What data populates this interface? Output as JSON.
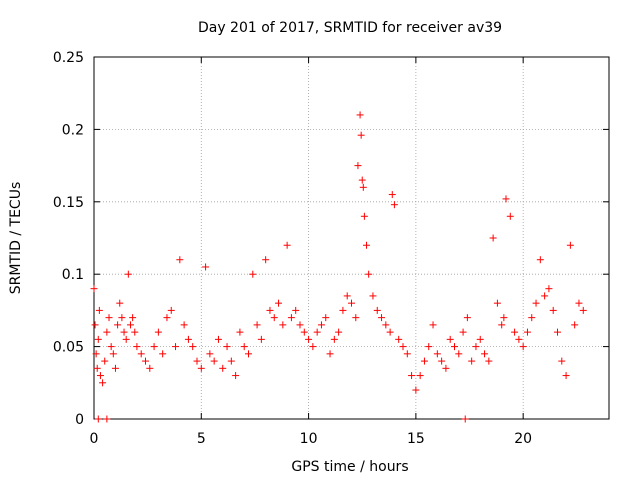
{
  "chart_data": {
    "type": "scatter",
    "title": "Day 201 of 2017, SRMTID for receiver av39",
    "xlabel": "GPS time / hours",
    "ylabel": "SRMTID / TECUs",
    "xlim": [
      0,
      24
    ],
    "ylim": [
      0,
      0.25
    ],
    "xticks": [
      0,
      5,
      10,
      15,
      20
    ],
    "xtick_labels": [
      "0",
      "5",
      "10",
      "15",
      "20"
    ],
    "yticks": [
      0,
      0.05,
      0.1,
      0.15,
      0.2,
      0.25
    ],
    "ytick_labels": [
      "0",
      "0.05",
      "0.1",
      "0.15",
      "0.2",
      "0.25"
    ],
    "grid": true,
    "legend": "none",
    "marker": "+",
    "series": [
      {
        "name": "SRMTID",
        "color": "#ff0000",
        "x": [
          0.0,
          0.05,
          0.1,
          0.15,
          0.2,
          0.25,
          0.3,
          0.4,
          0.5,
          0.6,
          0.7,
          0.8,
          0.9,
          1.0,
          1.1,
          1.2,
          1.3,
          1.4,
          1.5,
          1.6,
          1.7,
          1.8,
          1.9,
          2.0,
          2.2,
          2.4,
          2.6,
          2.8,
          3.0,
          3.2,
          3.4,
          3.6,
          3.8,
          4.0,
          4.2,
          4.4,
          4.6,
          4.8,
          5.0,
          5.2,
          5.4,
          5.6,
          5.8,
          6.0,
          6.2,
          6.4,
          6.6,
          6.8,
          7.0,
          7.2,
          7.4,
          7.6,
          7.8,
          8.0,
          8.2,
          8.4,
          8.6,
          8.8,
          9.0,
          9.2,
          9.4,
          9.6,
          9.8,
          10.0,
          10.2,
          10.4,
          10.6,
          10.8,
          11.0,
          11.2,
          11.4,
          11.6,
          11.8,
          12.0,
          12.2,
          12.3,
          12.4,
          12.45,
          12.5,
          12.55,
          12.6,
          12.7,
          12.8,
          13.0,
          13.2,
          13.4,
          13.6,
          13.8,
          13.9,
          14.0,
          14.2,
          14.4,
          14.6,
          14.8,
          15.0,
          15.2,
          15.4,
          15.6,
          15.8,
          16.0,
          16.2,
          16.4,
          16.6,
          16.8,
          17.0,
          17.2,
          17.4,
          17.6,
          17.8,
          18.0,
          18.2,
          18.4,
          18.6,
          18.8,
          19.0,
          19.1,
          19.2,
          19.4,
          19.6,
          19.8,
          20.0,
          20.2,
          20.4,
          20.6,
          20.8,
          21.0,
          21.2,
          21.4,
          21.6,
          21.8,
          22.0,
          22.2,
          22.4,
          22.6,
          22.8,
          0.2,
          0.6,
          17.3
        ],
        "y": [
          0.09,
          0.065,
          0.045,
          0.035,
          0.055,
          0.075,
          0.03,
          0.025,
          0.04,
          0.06,
          0.07,
          0.05,
          0.045,
          0.035,
          0.065,
          0.08,
          0.07,
          0.06,
          0.055,
          0.1,
          0.065,
          0.07,
          0.06,
          0.05,
          0.045,
          0.04,
          0.035,
          0.05,
          0.06,
          0.045,
          0.07,
          0.075,
          0.05,
          0.11,
          0.065,
          0.055,
          0.05,
          0.04,
          0.035,
          0.105,
          0.045,
          0.04,
          0.055,
          0.035,
          0.05,
          0.04,
          0.03,
          0.06,
          0.05,
          0.045,
          0.1,
          0.065,
          0.055,
          0.11,
          0.075,
          0.07,
          0.08,
          0.065,
          0.12,
          0.07,
          0.075,
          0.065,
          0.06,
          0.055,
          0.05,
          0.06,
          0.065,
          0.07,
          0.045,
          0.055,
          0.06,
          0.075,
          0.085,
          0.08,
          0.07,
          0.175,
          0.21,
          0.196,
          0.165,
          0.16,
          0.14,
          0.12,
          0.1,
          0.085,
          0.075,
          0.07,
          0.065,
          0.06,
          0.155,
          0.148,
          0.055,
          0.05,
          0.045,
          0.03,
          0.02,
          0.03,
          0.04,
          0.05,
          0.065,
          0.045,
          0.04,
          0.035,
          0.055,
          0.05,
          0.045,
          0.06,
          0.07,
          0.04,
          0.05,
          0.055,
          0.045,
          0.04,
          0.125,
          0.08,
          0.065,
          0.07,
          0.152,
          0.14,
          0.06,
          0.055,
          0.05,
          0.06,
          0.07,
          0.08,
          0.11,
          0.085,
          0.09,
          0.075,
          0.06,
          0.04,
          0.03,
          0.12,
          0.065,
          0.08,
          0.075,
          0.0,
          0.0,
          0.0
        ]
      }
    ]
  }
}
